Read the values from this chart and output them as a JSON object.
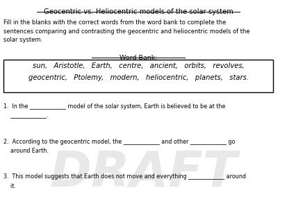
{
  "title": "Geocentric vs. Heliocentric models of the solar system",
  "instruction": "Fill in the blanks with the correct words from the word bank to complete the\nsentences comparing and contrasting the geocentric and heliocentric models of the\nsolar system.",
  "word_bank_label": "Word Bank:",
  "word_bank_line1": "sun,   Aristotle,   Earth,   centre,   ancient,   orbits,   revolves,",
  "word_bank_line2": "geocentric,   Ptolemy,   modern,   heliocentric,   planets,   stars.",
  "sentences": [
    "1.  In the _____________ model of the solar system, Earth is believed to be at the\n    _____________.",
    "2.  According to the geocentric model, the _____________ and other _____________ go\n    around Earth.",
    "3.  This model suggests that Earth does not move and everything _____________ around\n    it."
  ],
  "draft_text": "DRAFT",
  "bg_color": "#ffffff",
  "text_color": "#000000",
  "draft_color": "#cccccc",
  "border_color": "#000000"
}
